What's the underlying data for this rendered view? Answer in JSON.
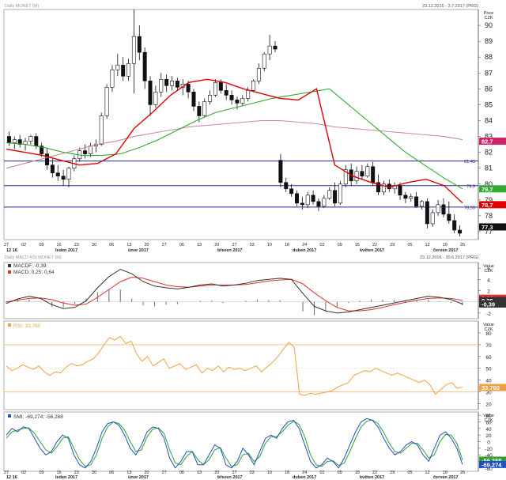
{
  "window": {
    "main_header_left": "Daily MONET (M)",
    "main_header_right": "23.12.2016 - 3.7.2017 (PRG)",
    "sub_header_left": "Daily MACD RSI MONET (M)",
    "sub_header_right": "23.12.2016 - 30.6.2017 (PRG)"
  },
  "colors": {
    "candle": "#111111",
    "ma_red": "#e00000",
    "ma_green": "#33aa33",
    "ma_pink": "#cc8899",
    "hline": "#1f2a8a",
    "macd_dark": "#333333",
    "macd_red": "#e03030",
    "rsi_line": "#f0a040",
    "rsi_band": "#f3c080",
    "smi_blue": "#2050c0",
    "smi_green": "#30a030"
  },
  "chart_data": [
    {
      "type": "candlestick",
      "name": "price",
      "title": "Daily MONET (M)",
      "ylabel_top": "Price",
      "ylabel_unit": "CZK",
      "ylim": [
        76.5,
        91
      ],
      "yticks": [
        "90",
        "89",
        "88",
        "87",
        "86",
        "85",
        "84",
        "83",
        "82",
        "81",
        "80",
        "79",
        "78",
        "77"
      ],
      "dates": [
        "27",
        "02",
        "09",
        "16",
        "23",
        "30",
        "06",
        "13",
        "20",
        "27",
        "06",
        "13",
        "20",
        "27",
        "03",
        "10",
        "18",
        "24",
        "02",
        "09",
        "15",
        "22",
        "29",
        "05",
        "12",
        "19",
        "26"
      ],
      "x_months": [
        "12 16",
        "leden 2017",
        "únor 2017",
        "březen 2017",
        "duben 2017",
        "květen 2017",
        "červen 2017"
      ],
      "candles": [
        [
          83.0,
          83.3,
          82.4,
          82.6
        ],
        [
          82.6,
          83.0,
          82.2,
          82.8
        ],
        [
          82.8,
          83.1,
          82.3,
          82.5
        ],
        [
          82.5,
          82.9,
          82.1,
          82.7
        ],
        [
          82.7,
          83.1,
          82.5,
          83.0
        ],
        [
          83.0,
          83.2,
          82.2,
          82.4
        ],
        [
          82.4,
          82.6,
          81.7,
          81.9
        ],
        [
          81.9,
          82.3,
          80.9,
          81.2
        ],
        [
          81.2,
          81.6,
          80.4,
          80.7
        ],
        [
          80.7,
          81.2,
          80.2,
          80.5
        ],
        [
          80.5,
          80.9,
          79.9,
          80.3
        ],
        [
          80.3,
          81.1,
          79.8,
          81.0
        ],
        [
          81.0,
          81.8,
          80.8,
          81.6
        ],
        [
          81.6,
          82.3,
          81.4,
          82.1
        ],
        [
          82.1,
          82.5,
          81.6,
          81.9
        ],
        [
          81.9,
          82.6,
          81.7,
          82.4
        ],
        [
          82.4,
          82.8,
          82.0,
          82.5
        ],
        [
          82.5,
          84.5,
          82.4,
          84.3
        ],
        [
          84.3,
          86.3,
          84.1,
          86.1
        ],
        [
          86.1,
          87.5,
          85.8,
          87.2
        ],
        [
          87.2,
          88.2,
          86.8,
          87.5
        ],
        [
          87.5,
          88.0,
          86.5,
          86.8
        ],
        [
          86.8,
          87.9,
          86.5,
          87.6
        ],
        [
          87.6,
          91.0,
          85.7,
          89.3
        ],
        [
          89.3,
          90.0,
          87.8,
          88.3
        ],
        [
          88.3,
          88.6,
          86.0,
          86.5
        ],
        [
          86.5,
          86.8,
          84.3,
          85.0
        ],
        [
          85.0,
          86.2,
          84.8,
          85.8
        ],
        [
          85.8,
          87.0,
          85.5,
          86.6
        ],
        [
          86.6,
          86.9,
          85.8,
          86.2
        ],
        [
          86.2,
          86.8,
          85.9,
          86.5
        ],
        [
          86.5,
          86.7,
          85.9,
          86.1
        ],
        [
          86.1,
          86.6,
          85.6,
          86.3
        ],
        [
          86.3,
          86.5,
          85.4,
          85.8
        ],
        [
          85.8,
          86.0,
          84.6,
          84.9
        ],
        [
          84.9,
          85.2,
          83.9,
          84.3
        ],
        [
          84.3,
          85.4,
          84.2,
          85.2
        ],
        [
          85.2,
          85.9,
          85.0,
          85.6
        ],
        [
          85.6,
          86.6,
          85.5,
          86.4
        ],
        [
          86.4,
          86.6,
          85.7,
          85.9
        ],
        [
          85.9,
          86.3,
          85.3,
          85.6
        ],
        [
          85.6,
          85.9,
          85.0,
          85.3
        ],
        [
          85.3,
          85.5,
          84.7,
          85.1
        ],
        [
          85.1,
          85.6,
          84.9,
          85.4
        ],
        [
          85.4,
          86.1,
          85.2,
          85.9
        ],
        [
          85.9,
          86.6,
          85.8,
          86.5
        ],
        [
          86.5,
          87.6,
          86.3,
          87.3
        ],
        [
          87.3,
          88.3,
          87.1,
          88.2
        ],
        [
          88.2,
          89.4,
          87.8,
          88.7
        ],
        [
          88.7,
          89.0,
          88.3,
          88.5
        ],
        [
          81.5,
          81.9,
          79.8,
          80.1
        ],
        [
          80.1,
          80.4,
          79.5,
          79.7
        ],
        [
          79.7,
          80.0,
          79.2,
          79.4
        ],
        [
          79.4,
          79.6,
          78.6,
          78.8
        ],
        [
          78.8,
          79.2,
          78.4,
          78.7
        ],
        [
          78.7,
          79.5,
          78.5,
          79.3
        ],
        [
          79.3,
          79.6,
          78.7,
          78.9
        ],
        [
          78.9,
          79.1,
          78.3,
          78.6
        ],
        [
          78.6,
          79.3,
          78.5,
          79.1
        ],
        [
          79.1,
          79.8,
          79.0,
          79.6
        ],
        [
          79.6,
          80.1,
          78.6,
          78.8
        ],
        [
          78.8,
          80.2,
          78.7,
          80.0
        ],
        [
          80.0,
          81.2,
          79.8,
          80.9
        ],
        [
          80.9,
          81.3,
          79.9,
          80.2
        ],
        [
          80.2,
          81.1,
          80.0,
          80.8
        ],
        [
          80.8,
          81.2,
          80.3,
          80.5
        ],
        [
          80.5,
          81.3,
          80.4,
          81.1
        ],
        [
          81.1,
          81.4,
          79.9,
          80.1
        ],
        [
          80.1,
          80.6,
          79.3,
          79.5
        ],
        [
          79.5,
          80.2,
          79.3,
          80.0
        ],
        [
          80.0,
          80.3,
          79.5,
          79.7
        ],
        [
          79.7,
          80.1,
          79.4,
          79.9
        ],
        [
          79.9,
          80.1,
          79.0,
          79.3
        ],
        [
          79.3,
          79.5,
          78.8,
          79.1
        ],
        [
          79.1,
          79.4,
          78.9,
          79.2
        ],
        [
          79.2,
          79.5,
          78.5,
          78.6
        ],
        [
          78.6,
          79.0,
          78.4,
          78.9
        ],
        [
          78.9,
          79.1,
          77.2,
          77.5
        ],
        [
          77.5,
          78.4,
          77.3,
          78.2
        ],
        [
          78.2,
          79.0,
          78.0,
          78.7
        ],
        [
          78.7,
          79.1,
          77.9,
          78.1
        ],
        [
          78.1,
          78.9,
          77.5,
          77.7
        ],
        [
          77.7,
          78.1,
          76.9,
          77.1
        ],
        [
          77.1,
          77.4,
          76.7,
          76.9
        ]
      ],
      "hlines": [
        {
          "value": 81.45,
          "label": "81,45"
        },
        {
          "value": 79.9,
          "label": "79,9"
        },
        {
          "value": 78.55,
          "label": "78,55"
        }
      ],
      "ma_red": [
        82.2,
        82.0,
        81.8,
        81.5,
        81.2,
        81.3,
        81.9,
        83.5,
        84.5,
        85.6,
        86.4,
        86.6,
        86.4,
        86.0,
        85.7,
        85.4,
        85.3,
        86.0,
        81.2,
        80.5,
        80.1,
        79.8,
        80.1,
        80.3,
        79.9,
        78.8
      ],
      "ma_green": [
        82.6,
        82.5,
        82.3,
        82.0,
        81.8,
        81.8,
        81.9,
        82.3,
        82.8,
        83.4,
        84.0,
        84.5,
        84.8,
        85.1,
        85.4,
        85.6,
        85.8,
        86.0,
        85.0,
        84.0,
        83.0,
        82.0,
        81.2,
        80.4,
        79.7
      ],
      "ma_pink": [
        81.0,
        81.3,
        81.6,
        81.9,
        82.2,
        82.5,
        82.7,
        83.0,
        83.2,
        83.4,
        83.6,
        83.7,
        83.8,
        83.9,
        84.0,
        84.0,
        83.9,
        83.8,
        83.6,
        83.5,
        83.4,
        83.3,
        83.2,
        83.1,
        83.0,
        82.8
      ],
      "price_labels": [
        {
          "value": 82.7,
          "label": "82,7",
          "color": "#cc2266"
        },
        {
          "value": 79.7,
          "label": "79,7",
          "color": "#33aa33"
        },
        {
          "value": 78.7,
          "label": "78,7",
          "color": "#e00000"
        },
        {
          "value": 77.3,
          "label": "77,3",
          "color": "#111111"
        }
      ]
    },
    {
      "type": "line",
      "name": "macd",
      "legend": [
        {
          "text": "MACDF; -0,39",
          "color": "#333333"
        },
        {
          "text": "MACD; 0,25; 0,64",
          "color": "#e03030"
        }
      ],
      "ylabel_top": "Value",
      "ylabel_unit": "CZK",
      "ylim": [
        -3,
        7
      ],
      "yticks": [
        "6",
        "4",
        "2",
        "0",
        "-2"
      ],
      "macd_dark": [
        -0.3,
        0.5,
        1.0,
        0.6,
        -0.5,
        -1.2,
        -1.0,
        0.2,
        2.5,
        4.5,
        5.8,
        5.0,
        3.6,
        2.8,
        2.5,
        2.3,
        2.6,
        3.0,
        3.2,
        2.8,
        3.0,
        3.3,
        3.8,
        4.0,
        4.2,
        4.0,
        1.5,
        -0.8,
        -1.6,
        -2.0,
        -1.8,
        -1.4,
        -1.0,
        -0.6,
        -0.2,
        0.2,
        0.6,
        1.0,
        0.8,
        0.4,
        -0.39
      ],
      "macd_red": [
        0.0,
        0.3,
        0.6,
        0.7,
        0.4,
        -0.2,
        -0.6,
        -0.4,
        0.8,
        2.2,
        3.6,
        4.4,
        4.2,
        3.6,
        3.0,
        2.7,
        2.6,
        2.8,
        3.0,
        3.0,
        3.0,
        3.1,
        3.4,
        3.7,
        3.9,
        4.0,
        3.2,
        1.6,
        0.2,
        -1.0,
        -1.6,
        -1.6,
        -1.4,
        -1.0,
        -0.5,
        -0.1,
        0.3,
        0.6,
        0.7,
        0.6,
        0.25
      ],
      "histogram": [
        -0.3,
        0.2,
        0.4,
        -0.1,
        -0.9,
        -1.0,
        -0.4,
        0.6,
        1.7,
        2.3,
        2.2,
        0.6,
        -0.6,
        -0.8,
        -0.5,
        -0.4,
        0.0,
        0.2,
        0.2,
        -0.2,
        0.0,
        0.2,
        0.4,
        0.3,
        0.3,
        0.0,
        -1.7,
        -2.4,
        -1.8,
        -1.0,
        -0.2,
        0.2,
        0.4,
        0.4,
        0.3,
        0.3,
        0.3,
        0.4,
        0.1,
        -0.2,
        -0.64
      ],
      "value_labels": [
        {
          "value": 0.64,
          "label": "0,64",
          "color": "#e03030"
        },
        {
          "value": 0.25,
          "label": "0,25",
          "color": "#333333"
        },
        {
          "value": -0.39,
          "label": "-0,39",
          "color": "#333333"
        }
      ]
    },
    {
      "type": "line",
      "name": "rsi",
      "legend": [
        {
          "text": "RSI; 33,760",
          "color": "#f0a040"
        }
      ],
      "ylabel_top": "Value",
      "ylabel_unit": "CZK",
      "ylim": [
        15,
        90
      ],
      "yticks": [
        "80",
        "70",
        "60",
        "50",
        "40",
        "30",
        "20"
      ],
      "band_lines": [
        70,
        30
      ],
      "mid_line": 50,
      "values": [
        52,
        48,
        50,
        53,
        51,
        49,
        52,
        47,
        44,
        47,
        46,
        51,
        54,
        52,
        53,
        56,
        58,
        63,
        70,
        76,
        74,
        77,
        71,
        73,
        62,
        56,
        60,
        52,
        55,
        58,
        50,
        52,
        54,
        49,
        51,
        53,
        46,
        50,
        48,
        52,
        47,
        51,
        49,
        50,
        48,
        50,
        52,
        47,
        51,
        55,
        60,
        66,
        72,
        68,
        28,
        27,
        29,
        28,
        29,
        30,
        31,
        34,
        36,
        38,
        44,
        46,
        48,
        47,
        50,
        48,
        46,
        44,
        46,
        44,
        42,
        40,
        38,
        40,
        36,
        28,
        32,
        36,
        38,
        33,
        34
      ],
      "value_labels": [
        {
          "value": 33.76,
          "label": "33,760",
          "color": "#f0a040"
        }
      ]
    },
    {
      "type": "line",
      "name": "smi",
      "legend": [
        {
          "text": "SMI; -69,274; -56,268",
          "color": "#2050c0"
        }
      ],
      "ylabel_top": "Value",
      "ylabel_unit": "CZK",
      "ylim": [
        -90,
        90
      ],
      "yticks": [
        "80",
        "60",
        "40",
        "20",
        "0",
        "-20",
        "-40",
        "-60",
        "-80"
      ],
      "smi_blue": [
        20,
        40,
        30,
        45,
        40,
        10,
        -20,
        -40,
        -30,
        0,
        20,
        10,
        -40,
        -70,
        -80,
        -60,
        -20,
        30,
        55,
        60,
        50,
        20,
        -20,
        -40,
        -10,
        30,
        45,
        40,
        10,
        -50,
        -80,
        -60,
        -30,
        -30,
        -70,
        -70,
        -40,
        -10,
        -20,
        -70,
        -80,
        -60,
        -20,
        -40,
        -70,
        -30,
        10,
        20,
        10,
        40,
        60,
        65,
        40,
        -10,
        -60,
        -80,
        -70,
        -50,
        -60,
        -80,
        -50,
        -10,
        30,
        60,
        70,
        65,
        45,
        10,
        -20,
        -40,
        -30,
        -10,
        0,
        -10,
        -40,
        -60,
        -20,
        20,
        30,
        10,
        -20,
        -69.274
      ],
      "smi_green": [
        10,
        30,
        35,
        40,
        42,
        25,
        0,
        -25,
        -35,
        -15,
        10,
        15,
        -20,
        -55,
        -75,
        -70,
        -40,
        10,
        45,
        60,
        55,
        35,
        0,
        -30,
        -25,
        15,
        38,
        42,
        25,
        -25,
        -65,
        -70,
        -45,
        -30,
        -55,
        -70,
        -55,
        -25,
        -18,
        -50,
        -75,
        -70,
        -40,
        -35,
        -60,
        -45,
        -5,
        15,
        15,
        30,
        50,
        62,
        52,
        15,
        -40,
        -70,
        -75,
        -60,
        -58,
        -72,
        -65,
        -30,
        10,
        45,
        62,
        66,
        55,
        28,
        -5,
        -30,
        -35,
        -20,
        -5,
        -5,
        -25,
        -50,
        -40,
        0,
        22,
        20,
        -5,
        -56.268
      ],
      "value_labels": [
        {
          "value": -56.268,
          "label": "-56,268",
          "color": "#30a030"
        },
        {
          "value": -69.274,
          "label": "-69,274",
          "color": "#2050c0"
        }
      ]
    }
  ]
}
